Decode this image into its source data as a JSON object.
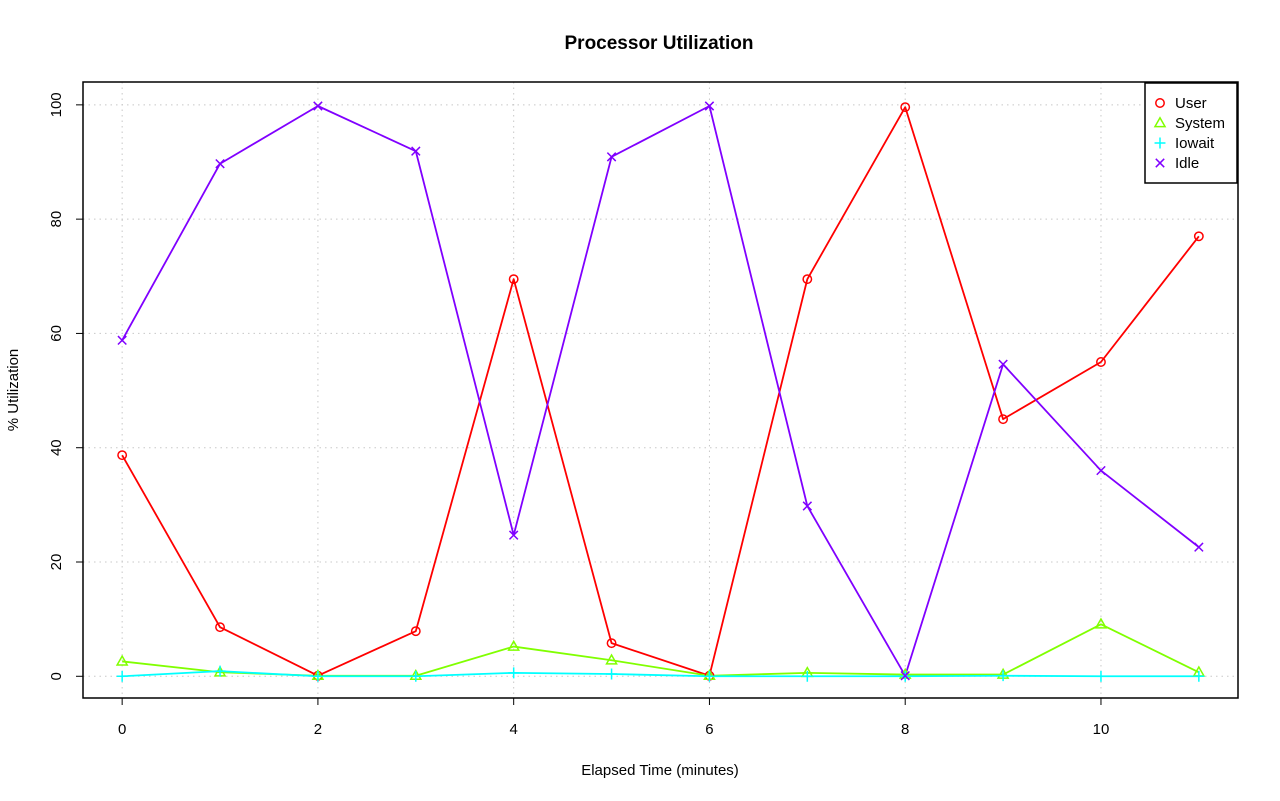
{
  "chart_data": {
    "type": "line",
    "title": "Processor Utilization",
    "xlabel": "Elapsed Time (minutes)",
    "ylabel": "% Utilization",
    "x": [
      0,
      1,
      2,
      3,
      4,
      5,
      6,
      7,
      8,
      9,
      10,
      11
    ],
    "xlim": [
      -0.4,
      11.4
    ],
    "ylim": [
      -3.8,
      104
    ],
    "xticks": [
      0,
      2,
      4,
      6,
      8,
      10
    ],
    "yticks": [
      0,
      20,
      40,
      60,
      80,
      100
    ],
    "grid": true,
    "legend_position": "top-right",
    "series": [
      {
        "name": "User",
        "color": "#ff0000",
        "marker": "circle",
        "values": [
          38.7,
          8.6,
          0.1,
          7.9,
          69.5,
          5.8,
          0.1,
          69.5,
          99.6,
          45.0,
          55.0,
          77.0
        ]
      },
      {
        "name": "System",
        "color": "#80ff00",
        "marker": "triangle",
        "values": [
          2.6,
          0.7,
          0.1,
          0.1,
          5.2,
          2.8,
          0.1,
          0.6,
          0.3,
          0.3,
          9.1,
          0.7
        ]
      },
      {
        "name": "Iowait",
        "color": "#00ffff",
        "marker": "plus",
        "values": [
          0.0,
          0.9,
          0.0,
          0.0,
          0.6,
          0.4,
          0.0,
          0.0,
          0.0,
          0.1,
          0.0,
          0.0
        ]
      },
      {
        "name": "Idle",
        "color": "#8000ff",
        "marker": "cross",
        "values": [
          58.8,
          89.7,
          99.8,
          91.9,
          24.7,
          90.9,
          99.8,
          29.8,
          0.1,
          54.6,
          36.0,
          22.6
        ]
      }
    ]
  }
}
